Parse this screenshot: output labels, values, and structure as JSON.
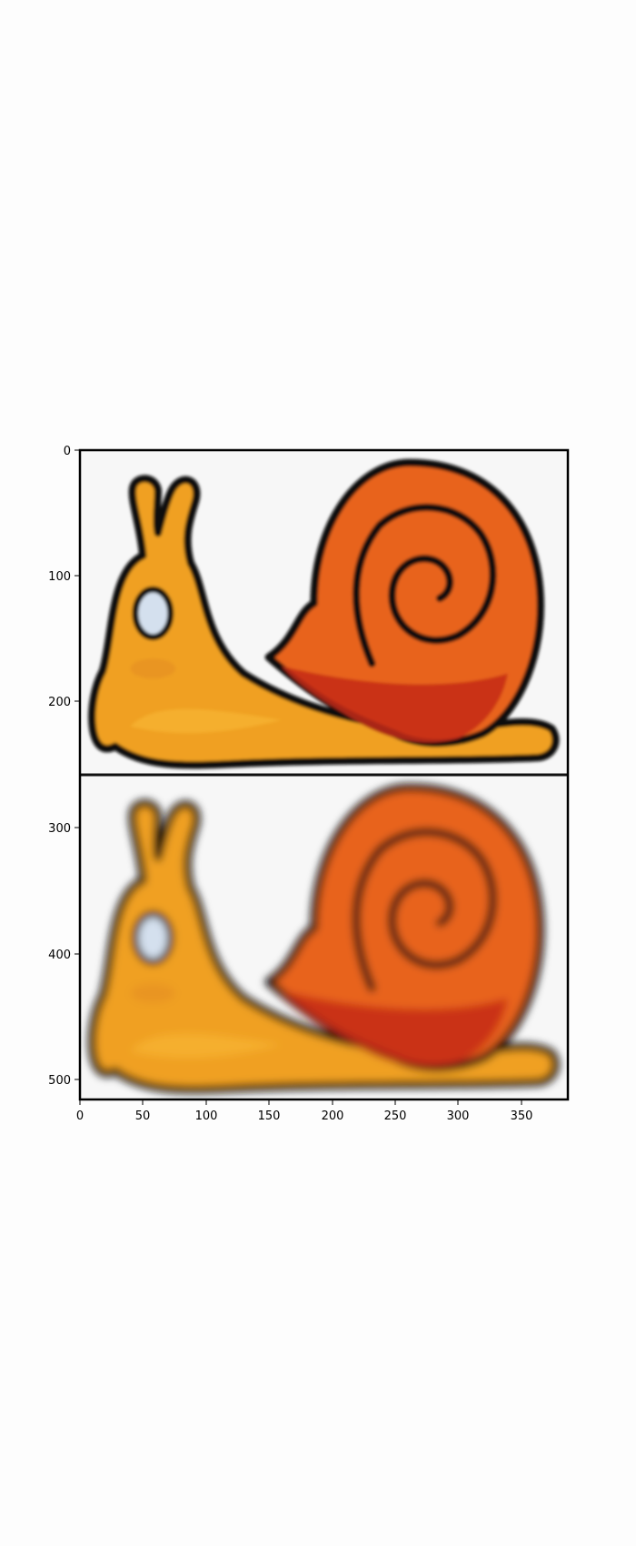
{
  "figure": {
    "background": "#fdfdfd",
    "image_background": "#f7f7f7",
    "upper_panel": "sharp snail cartoon (orange body, red-orange spiral shell, pale blue eye)",
    "lower_panel": "blurred copy of the same snail cartoon"
  },
  "colors": {
    "body": "#f0a020",
    "body_highlight": "#f6b534",
    "shell": "#e8641a",
    "shell_dark": "#c42a18",
    "outline": "#111111",
    "eye": "#d4e0ee"
  },
  "axes": {
    "x_ticks": [
      "0",
      "50",
      "100",
      "150",
      "200",
      "250",
      "300",
      "350"
    ],
    "y_ticks": [
      "0",
      "100",
      "200",
      "300",
      "400",
      "500"
    ]
  }
}
